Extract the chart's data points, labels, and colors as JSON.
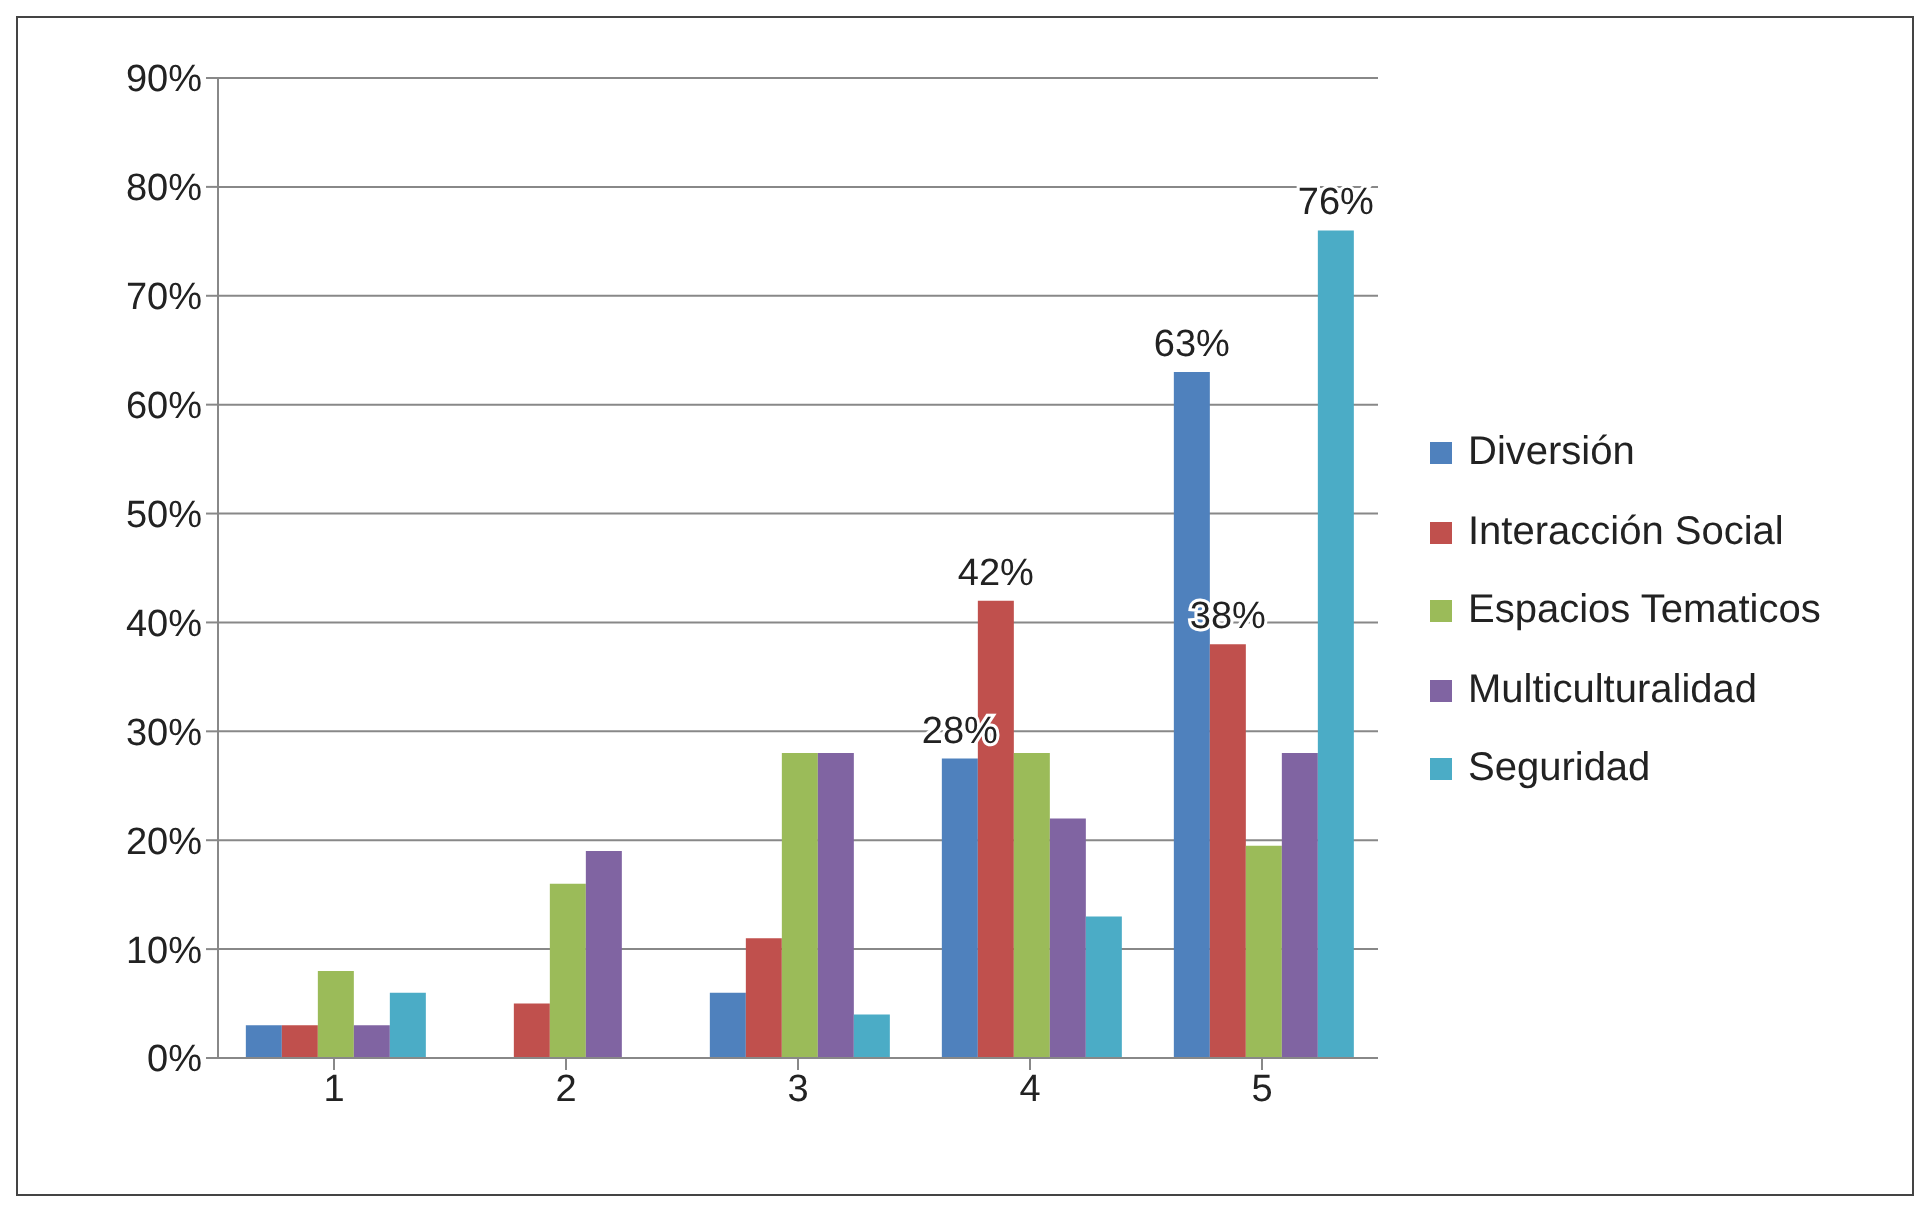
{
  "chart_data": {
    "type": "bar",
    "categories": [
      "1",
      "2",
      "3",
      "4",
      "5"
    ],
    "series": [
      {
        "name": "Diversión",
        "color": "#4f81bd",
        "values": [
          3,
          0,
          6,
          27.5,
          63
        ],
        "value_labels": [
          null,
          null,
          null,
          "28%",
          "63%"
        ]
      },
      {
        "name": "Interacción Social",
        "color": "#c0504d",
        "values": [
          3,
          5,
          11,
          42,
          38
        ],
        "value_labels": [
          null,
          null,
          null,
          "42%",
          "38%"
        ]
      },
      {
        "name": "Espacios Tematicos",
        "color": "#9bbb59",
        "values": [
          8,
          16,
          28,
          28,
          19.5
        ]
      },
      {
        "name": "Multiculturalidad",
        "color": "#8064a2",
        "values": [
          3,
          19,
          28,
          22,
          28
        ]
      },
      {
        "name": "Seguridad",
        "color": "#4bacc6",
        "values": [
          6,
          0,
          4,
          13,
          76
        ],
        "value_labels": [
          null,
          null,
          null,
          null,
          "76%"
        ]
      }
    ],
    "ylim": [
      0,
      90
    ],
    "yticks": [
      {
        "value": 0,
        "label": "0%"
      },
      {
        "value": 10,
        "label": "10%"
      },
      {
        "value": 20,
        "label": "20%"
      },
      {
        "value": 30,
        "label": "30%"
      },
      {
        "value": 40,
        "label": "40%"
      },
      {
        "value": 50,
        "label": "50%"
      },
      {
        "value": 60,
        "label": "60%"
      },
      {
        "value": 70,
        "label": "70%"
      },
      {
        "value": 80,
        "label": "80%"
      },
      {
        "value": 90,
        "label": "90%"
      }
    ],
    "grid": "y",
    "legend": "right"
  }
}
